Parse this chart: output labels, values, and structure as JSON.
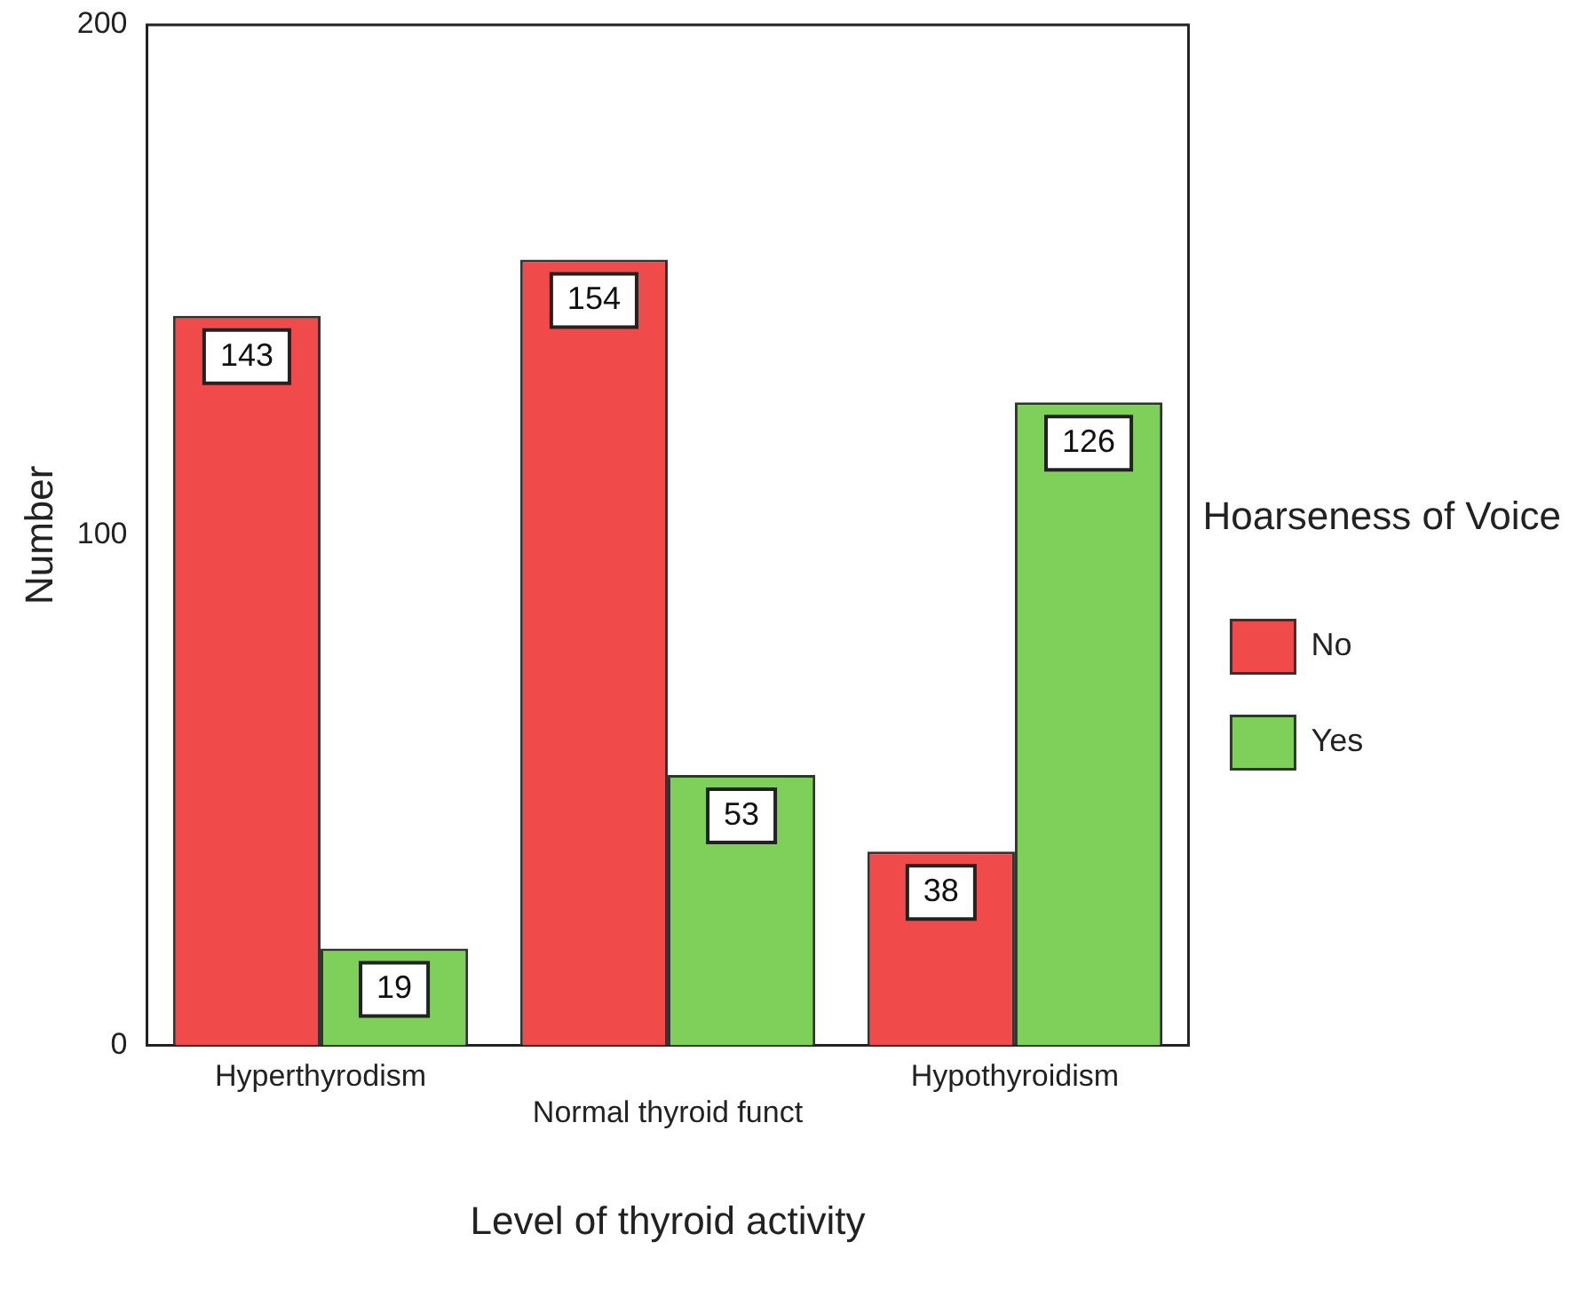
{
  "chart_data": {
    "type": "bar",
    "xlabel": "Level of thyroid activity",
    "ylabel": "Number",
    "legend_title": "Hoarseness of Voice",
    "categories": [
      "Hyperthyrodism",
      "Normal thyroid funct",
      "Hypothyroidism"
    ],
    "series": [
      {
        "name": "No",
        "color": "#f04a4a",
        "values": [
          143,
          154,
          38
        ]
      },
      {
        "name": "Yes",
        "color": "#7fd05a",
        "values": [
          19,
          53,
          126
        ]
      }
    ],
    "ylim": [
      0,
      200
    ],
    "yticks": [
      0,
      100,
      200
    ],
    "grid": false,
    "legend": "right",
    "data_labels": true
  }
}
